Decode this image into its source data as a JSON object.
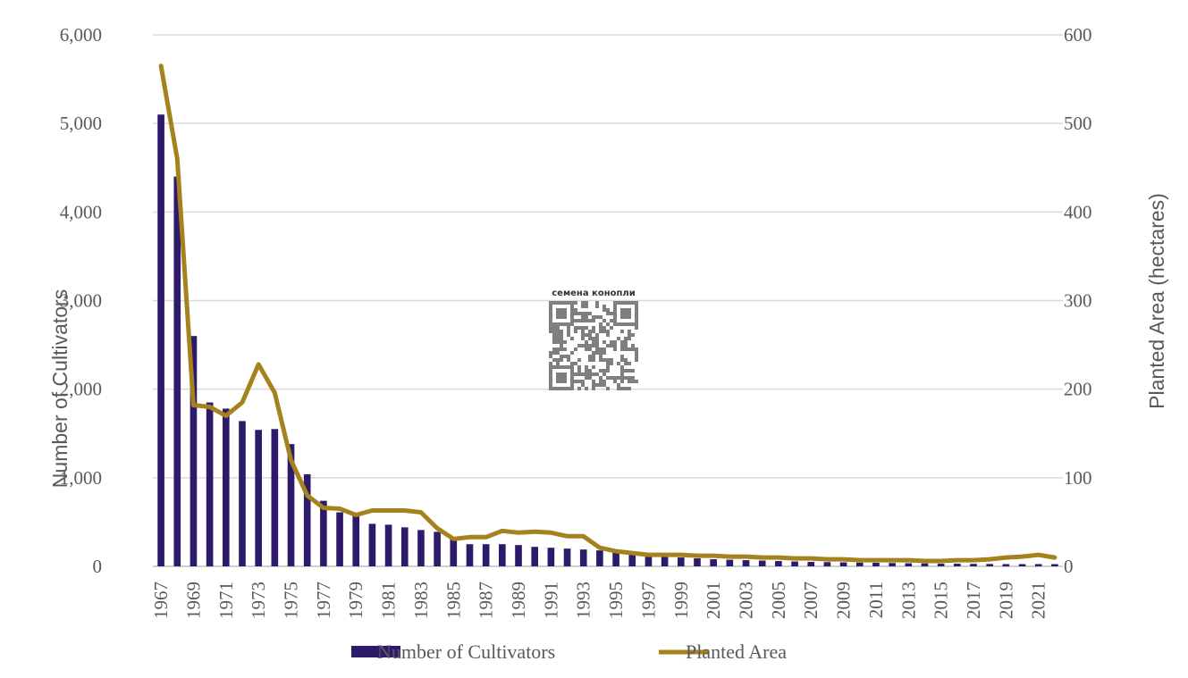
{
  "chart_data": {
    "type": "bar",
    "x": [
      1967,
      1968,
      1969,
      1970,
      1971,
      1972,
      1973,
      1974,
      1975,
      1976,
      1977,
      1978,
      1979,
      1980,
      1981,
      1982,
      1983,
      1984,
      1985,
      1986,
      1987,
      1988,
      1989,
      1990,
      1991,
      1992,
      1993,
      1994,
      1995,
      1996,
      1997,
      1998,
      1999,
      2000,
      2001,
      2002,
      2003,
      2004,
      2005,
      2006,
      2007,
      2008,
      2009,
      2010,
      2011,
      2012,
      2013,
      2014,
      2015,
      2016,
      2017,
      2018,
      2019,
      2020,
      2021,
      2022
    ],
    "x_tick_labels": [
      "1967",
      "1969",
      "1971",
      "1973",
      "1975",
      "1977",
      "1979",
      "1981",
      "1983",
      "1985",
      "1987",
      "1989",
      "1991",
      "1993",
      "1995",
      "1997",
      "1999",
      "2001",
      "2003",
      "2005",
      "2007",
      "2009",
      "2011",
      "2013",
      "2015",
      "2017",
      "2019",
      "2021"
    ],
    "y_left_ticks": [
      "0",
      "1,000",
      "2,000",
      "3,000",
      "4,000",
      "5,000",
      "6,000"
    ],
    "y_right_ticks": [
      "0",
      "100",
      "200",
      "300",
      "400",
      "500",
      "600"
    ],
    "ylim_left": [
      0,
      6000
    ],
    "ylim_right": [
      0,
      600
    ],
    "ylabel_left": "Number of Cultivators",
    "ylabel_right": "Planted Area (hectares)",
    "grid": true,
    "legend_position": "bottom",
    "series": [
      {
        "name": "Number of Cultivators",
        "type": "bar",
        "axis": "left",
        "color": "#2e1a6b",
        "values": [
          5100,
          4400,
          2600,
          1850,
          1780,
          1640,
          1540,
          1550,
          1380,
          1040,
          740,
          610,
          570,
          480,
          470,
          440,
          410,
          390,
          310,
          250,
          250,
          250,
          240,
          220,
          210,
          200,
          190,
          180,
          160,
          140,
          120,
          110,
          100,
          90,
          80,
          75,
          70,
          65,
          60,
          55,
          50,
          48,
          45,
          42,
          40,
          38,
          35,
          33,
          30,
          30,
          28,
          27,
          25,
          25,
          25,
          25
        ]
      },
      {
        "name": "Planted Area",
        "type": "line",
        "axis": "right",
        "color": "#a6821e",
        "values": [
          565,
          460,
          182,
          180,
          170,
          185,
          228,
          196,
          120,
          80,
          66,
          65,
          58,
          63,
          63,
          63,
          61,
          43,
          31,
          33,
          33,
          40,
          38,
          39,
          38,
          34,
          34,
          21,
          17,
          15,
          13,
          13,
          13,
          12,
          12,
          11,
          11,
          10,
          10,
          9,
          9,
          8,
          8,
          7,
          7,
          7,
          7,
          6,
          6,
          7,
          7,
          8,
          10,
          11,
          13,
          10
        ]
      }
    ]
  },
  "watermark": {
    "label": "семена конопли",
    "icon": "qr-code-icon"
  }
}
